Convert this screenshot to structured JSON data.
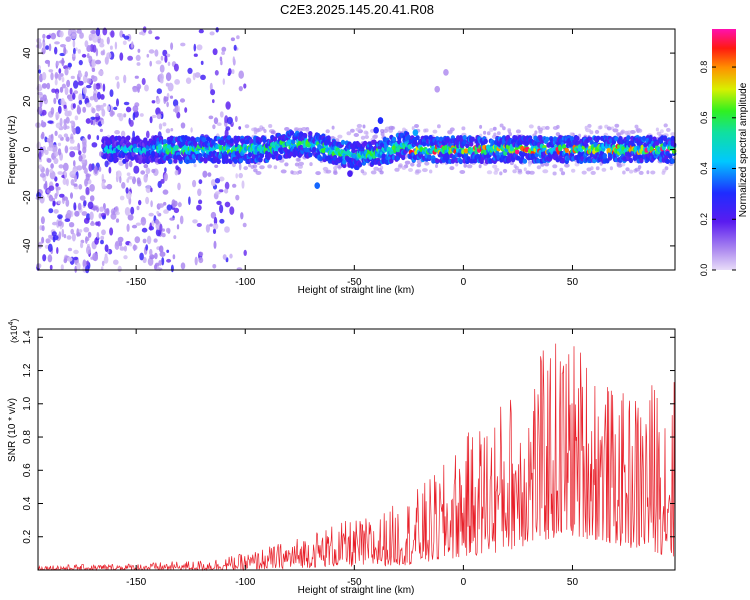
{
  "title": "C2E3.2025.145.20.41.R08",
  "chart_data": [
    {
      "type": "heatmap",
      "xlabel": "Height of straight line (km)",
      "ylabel": "Frequency (Hz)",
      "xlim": [
        -195,
        97
      ],
      "ylim": [
        -50,
        50
      ],
      "xticks": [
        -150,
        -100,
        -50,
        0,
        50
      ],
      "yticks": [
        -40,
        -20,
        0,
        20,
        40
      ],
      "colorbar": {
        "label": "Normalized spectral amplitude",
        "range": [
          0.0,
          0.95
        ],
        "ticks": [
          0.0,
          0.2,
          0.4,
          0.6,
          0.8
        ],
        "colormap": "rainbow (lavender-violet-blue-cyan-green-yellow-red-magenta)"
      },
      "features": {
        "noise_region_x": [
          -195,
          -100
        ],
        "main_band_center_hz": 0,
        "main_band_halfwidth_hz": 5,
        "band_start_x": -165,
        "high_amplitude_segments_x": [
          [
            -25,
            97
          ]
        ]
      }
    },
    {
      "type": "line",
      "xlabel": "Height of straight line (km)",
      "ylabel": "SNR (10 * v/v)",
      "y_multiplier_label": "(x10",
      "y_multiplier_exp": "4",
      "xlim": [
        -195,
        97
      ],
      "ylim": [
        0,
        1.45
      ],
      "xticks": [
        -150,
        -100,
        -50,
        0,
        50
      ],
      "yticks": [
        0.2,
        0.4,
        0.6,
        0.8,
        1.0,
        1.2,
        1.4
      ],
      "series": [
        {
          "color": "#e8202a",
          "envelope": {
            "x": [
              -195,
              -150,
              -120,
              -100,
              -80,
              -60,
              -40,
              -25,
              -10,
              0,
              15,
              30,
              40,
              50,
              60,
              70,
              80,
              90,
              97
            ],
            "max": [
              0.03,
              0.04,
              0.06,
              0.1,
              0.18,
              0.28,
              0.33,
              0.45,
              0.62,
              0.8,
              1.0,
              1.2,
              1.4,
              1.42,
              1.3,
              1.05,
              1.1,
              1.18,
              1.2
            ],
            "min": [
              0.0,
              0.0,
              0.0,
              0.0,
              0.01,
              0.02,
              0.02,
              0.03,
              0.05,
              0.08,
              0.1,
              0.15,
              0.18,
              0.2,
              0.18,
              0.15,
              0.12,
              0.1,
              0.05
            ]
          }
        }
      ]
    }
  ]
}
